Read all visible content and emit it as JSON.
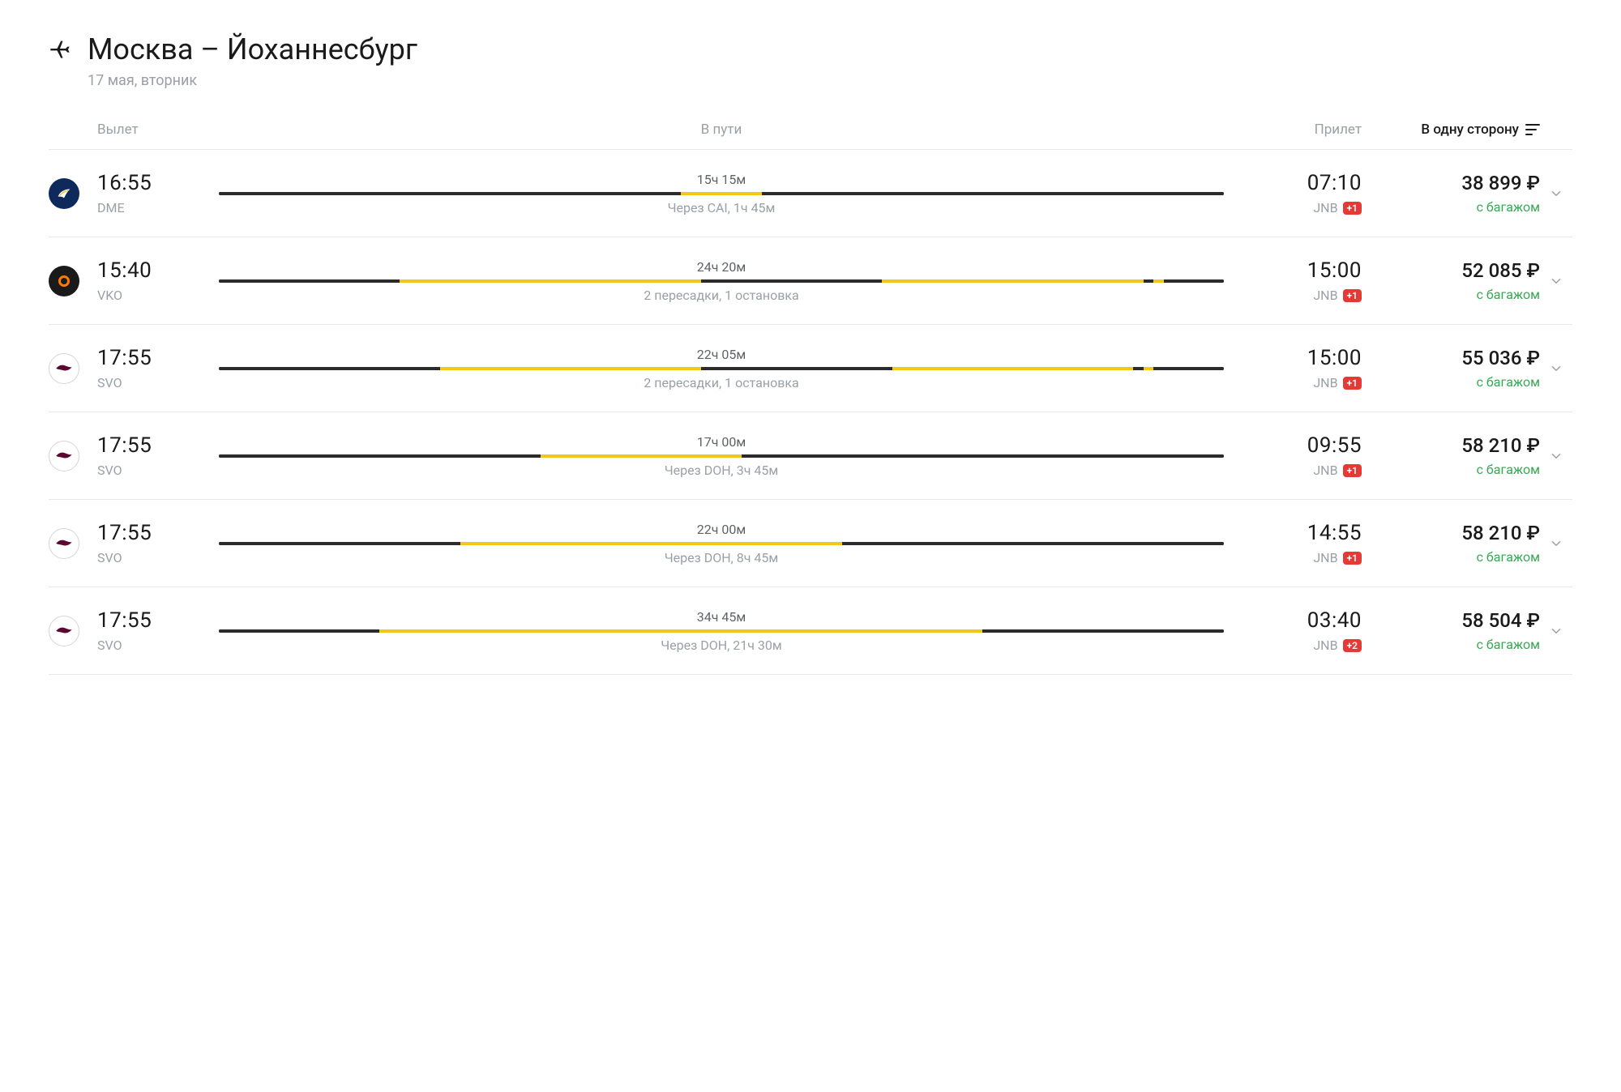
{
  "colors": {
    "text_primary": "#1a1a1a",
    "text_muted": "#9aa0a6",
    "text_secondary": "#5f6368",
    "border": "#e6e8ea",
    "baggage_green": "#34a853",
    "day_badge_bg": "#e53935",
    "bar_dark": "#2b2b2b",
    "bar_yellow": "#f5c518",
    "logo_egyptair_bg": "#0e2a5c",
    "logo_egyptair_accent": "#f0b400",
    "logo_dark_bg": "#1a1a1a",
    "logo_dark_ring": "#ff7b00",
    "logo_qatar_bg": "#ffffff",
    "logo_qatar_border": "#d9d2d6",
    "logo_qatar_mark": "#5c0632"
  },
  "header": {
    "route": "Москва – Йоханнесбург",
    "date": "17 мая, вторник"
  },
  "columns": {
    "departure": "Вылет",
    "duration": "В пути",
    "arrival": "Прилет",
    "sort_label": "В одну сторону"
  },
  "flights": [
    {
      "airline_logo": "egyptair",
      "dep_time": "16:55",
      "dep_airport": "DME",
      "duration": "15ч 15м",
      "layover": "Через CAI, 1ч 45м",
      "segments": [
        {
          "start": 0,
          "end": 46,
          "color": "#2b2b2b"
        },
        {
          "start": 46,
          "end": 54,
          "color": "#f5c518"
        },
        {
          "start": 54,
          "end": 100,
          "color": "#2b2b2b"
        }
      ],
      "arr_time": "07:10",
      "arr_airport": "JNB",
      "day_offset": "+1",
      "price": "38 899 ₽",
      "baggage": "с багажом"
    },
    {
      "airline_logo": "dark-orange",
      "dep_time": "15:40",
      "dep_airport": "VKO",
      "duration": "24ч 20м",
      "layover": "2 пересадки, 1 остановка",
      "segments": [
        {
          "start": 0,
          "end": 18,
          "color": "#2b2b2b"
        },
        {
          "start": 18,
          "end": 48,
          "color": "#f5c518"
        },
        {
          "start": 48,
          "end": 66,
          "color": "#2b2b2b"
        },
        {
          "start": 66,
          "end": 92,
          "color": "#f5c518"
        },
        {
          "start": 92,
          "end": 93,
          "color": "#2b2b2b"
        },
        {
          "start": 93,
          "end": 94,
          "color": "#f5c518"
        },
        {
          "start": 94,
          "end": 100,
          "color": "#2b2b2b"
        }
      ],
      "arr_time": "15:00",
      "arr_airport": "JNB",
      "day_offset": "+1",
      "price": "52 085 ₽",
      "baggage": "с багажом"
    },
    {
      "airline_logo": "qatar",
      "dep_time": "17:55",
      "dep_airport": "SVO",
      "duration": "22ч 05м",
      "layover": "2 пересадки, 1 остановка",
      "segments": [
        {
          "start": 0,
          "end": 22,
          "color": "#2b2b2b"
        },
        {
          "start": 22,
          "end": 48,
          "color": "#f5c518"
        },
        {
          "start": 48,
          "end": 67,
          "color": "#2b2b2b"
        },
        {
          "start": 67,
          "end": 91,
          "color": "#f5c518"
        },
        {
          "start": 91,
          "end": 92,
          "color": "#2b2b2b"
        },
        {
          "start": 92,
          "end": 93,
          "color": "#f5c518"
        },
        {
          "start": 93,
          "end": 100,
          "color": "#2b2b2b"
        }
      ],
      "arr_time": "15:00",
      "arr_airport": "JNB",
      "day_offset": "+1",
      "price": "55 036 ₽",
      "baggage": "с багажом"
    },
    {
      "airline_logo": "qatar",
      "dep_time": "17:55",
      "dep_airport": "SVO",
      "duration": "17ч 00м",
      "layover": "Через DOH, 3ч 45м",
      "segments": [
        {
          "start": 0,
          "end": 32,
          "color": "#2b2b2b"
        },
        {
          "start": 32,
          "end": 52,
          "color": "#f5c518"
        },
        {
          "start": 52,
          "end": 100,
          "color": "#2b2b2b"
        }
      ],
      "arr_time": "09:55",
      "arr_airport": "JNB",
      "day_offset": "+1",
      "price": "58 210 ₽",
      "baggage": "с багажом"
    },
    {
      "airline_logo": "qatar",
      "dep_time": "17:55",
      "dep_airport": "SVO",
      "duration": "22ч 00м",
      "layover": "Через DOH, 8ч 45м",
      "segments": [
        {
          "start": 0,
          "end": 24,
          "color": "#2b2b2b"
        },
        {
          "start": 24,
          "end": 62,
          "color": "#f5c518"
        },
        {
          "start": 62,
          "end": 100,
          "color": "#2b2b2b"
        }
      ],
      "arr_time": "14:55",
      "arr_airport": "JNB",
      "day_offset": "+1",
      "price": "58 210 ₽",
      "baggage": "с багажом"
    },
    {
      "airline_logo": "qatar",
      "dep_time": "17:55",
      "dep_airport": "SVO",
      "duration": "34ч 45м",
      "layover": "Через DOH, 21ч 30м",
      "segments": [
        {
          "start": 0,
          "end": 16,
          "color": "#2b2b2b"
        },
        {
          "start": 16,
          "end": 76,
          "color": "#f5c518"
        },
        {
          "start": 76,
          "end": 100,
          "color": "#2b2b2b"
        }
      ],
      "arr_time": "03:40",
      "arr_airport": "JNB",
      "day_offset": "+2",
      "price": "58 504 ₽",
      "baggage": "с багажом"
    }
  ]
}
